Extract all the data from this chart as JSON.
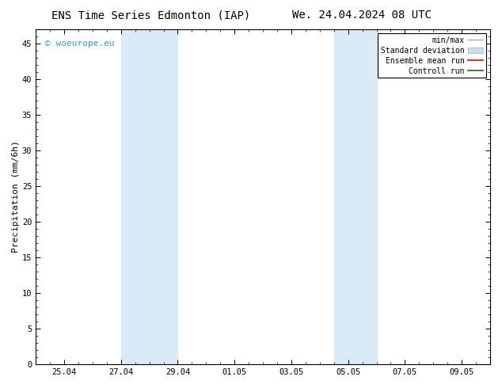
{
  "title_left": "ENS Time Series Edmonton (IAP)",
  "title_right": "We. 24.04.2024 08 UTC",
  "ylabel": "Precipitation (mm/6h)",
  "ylim": [
    0,
    47
  ],
  "yticks": [
    0,
    5,
    10,
    15,
    20,
    25,
    30,
    35,
    40,
    45
  ],
  "xtick_positions": [
    1,
    3,
    5,
    7,
    9,
    11,
    13,
    15
  ],
  "xtick_labels": [
    "25.04",
    "27.04",
    "29.04",
    "01.05",
    "03.05",
    "05.05",
    "07.05",
    "09.05"
  ],
  "xlim": [
    0,
    16
  ],
  "band_ranges": [
    [
      3.0,
      5.0
    ],
    [
      10.5,
      12.0
    ]
  ],
  "band_color": "#daeaf6",
  "background_color": "#ffffff",
  "watermark_text": "© woeurope.eu",
  "watermark_color": "#3399ff",
  "title_fontsize": 10,
  "axis_fontsize": 8,
  "tick_fontsize": 7.5,
  "legend_fontsize": 7,
  "minmax_color": "#aaaaaa",
  "std_color": "#c8dff0",
  "ensemble_color": "#ff0000",
  "control_color": "#007700"
}
